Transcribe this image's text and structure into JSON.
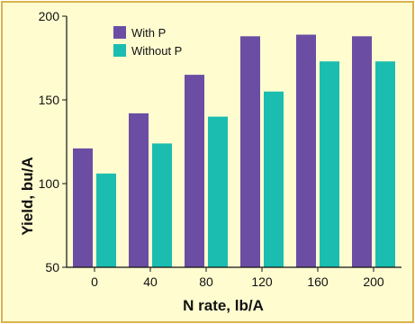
{
  "colors": {
    "background": "#fffdd0",
    "border": "#d9b34a",
    "with_p": "#6b4ea3",
    "without_p": "#1abdb0"
  },
  "chart_data": {
    "type": "bar",
    "title": "",
    "xlabel": "N rate, lb/A",
    "ylabel": "Yield, bu/A",
    "categories": [
      "0",
      "40",
      "80",
      "120",
      "160",
      "200"
    ],
    "ylim": [
      50,
      200
    ],
    "yticks": [
      "50",
      "100",
      "150",
      "200"
    ],
    "legend_position": "top-left",
    "grid": false,
    "series": [
      {
        "name": "With P",
        "values": [
          121,
          142,
          165,
          188,
          189,
          188
        ]
      },
      {
        "name": "Without P",
        "values": [
          106,
          124,
          140,
          155,
          173,
          173
        ]
      }
    ]
  }
}
